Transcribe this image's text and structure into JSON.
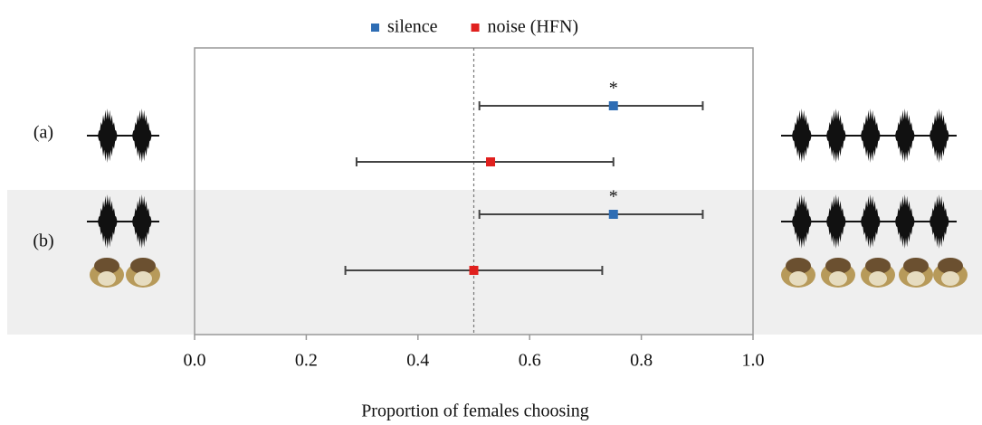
{
  "chart_data": {
    "type": "dot-errorbar",
    "categories": [
      "(a)",
      "(b)"
    ],
    "series": [
      {
        "name": "silence",
        "color": "#2e6db4",
        "values": [
          0.75,
          0.75
        ],
        "lower": [
          0.51,
          0.51
        ],
        "upper": [
          0.91,
          0.91
        ],
        "labels": [
          "*",
          "*"
        ]
      },
      {
        "name": "noise (HFN)",
        "color": "#e0201e",
        "values": [
          0.53,
          0.5
        ],
        "lower": [
          0.29,
          0.27
        ],
        "upper": [
          0.75,
          0.73
        ]
      }
    ],
    "xlabel": "Proportion of females choosing",
    "xlim": [
      0,
      1
    ],
    "xticks": [
      {
        "value": 0,
        "label": "0.0"
      },
      0.2,
      0.4,
      0.6,
      0.8,
      {
        "value": 1,
        "label": "1.0"
      }
    ],
    "reference_line": 0.5,
    "legend": "top"
  }
}
